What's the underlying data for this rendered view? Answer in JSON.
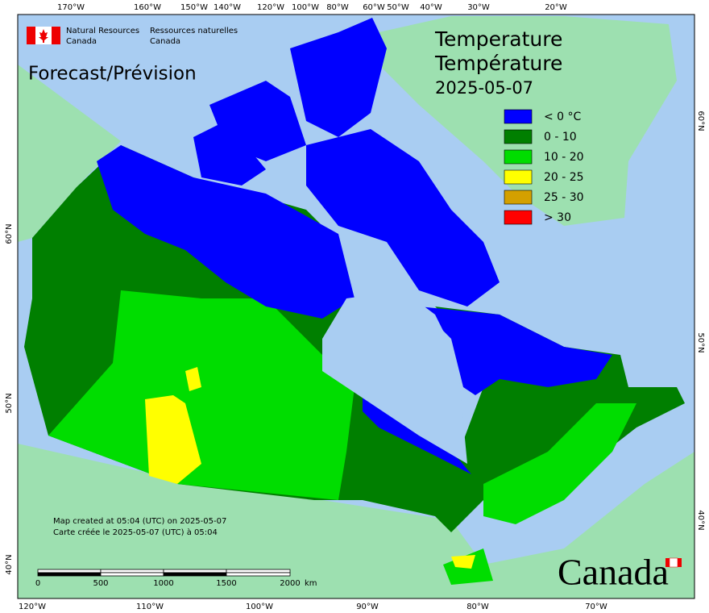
{
  "header": {
    "agency_en": "Natural Resources",
    "agency_en_2": "Canada",
    "agency_fr": "Ressources naturelles",
    "agency_fr_2": "Canada"
  },
  "subtitle": "Forecast/Prévision",
  "title": [
    "Temperature",
    "Température",
    "2025-05-07"
  ],
  "legend": [
    {
      "label": "< 0 °C",
      "color": "#0000ff"
    },
    {
      "label": "0 - 10",
      "color": "#007f00"
    },
    {
      "label": "10 - 20",
      "color": "#00dd00"
    },
    {
      "label": "20 - 25",
      "color": "#ffff00"
    },
    {
      "label": "25 - 30",
      "color": "#d4a000"
    },
    {
      "label": "> 30",
      "color": "#ff0000"
    }
  ],
  "footer_note": [
    "Map created at 05:04 (UTC) on 2025-05-07",
    "Carte créée le 2025-05-07 (UTC) à 05:04"
  ],
  "scale_bar": {
    "labels": [
      "0",
      "500",
      "1000",
      "1500",
      "2000"
    ],
    "unit": "km"
  },
  "top_longitudes": [
    "170°W",
    "160°W",
    "150°W",
    "140°W",
    "120°W",
    "100°W",
    "80°W",
    "60°W",
    "50°W",
    "40°W",
    "30°W",
    "20°W"
  ],
  "bottom_longitudes": [
    "120°W",
    "110°W",
    "100°W",
    "90°W",
    "80°W",
    "70°W"
  ],
  "left_latitudes": [
    "60°N",
    "50°N",
    "40°N"
  ],
  "right_latitudes": [
    "60°N",
    "50°N",
    "40°N"
  ],
  "wordmark": "Canada"
}
